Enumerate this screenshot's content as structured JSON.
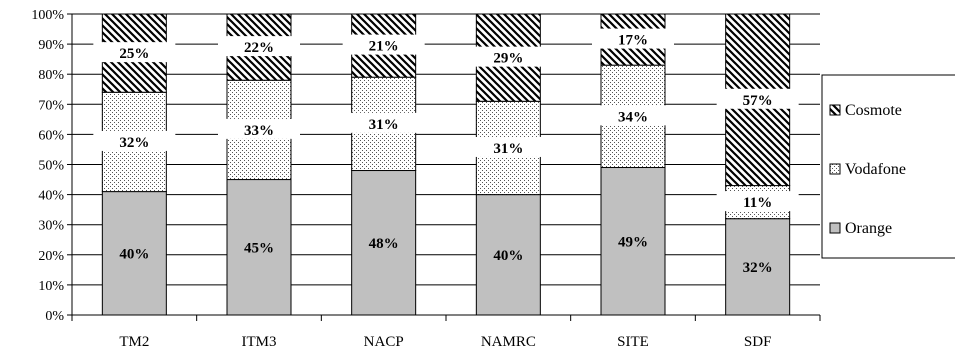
{
  "chart_data": {
    "type": "bar",
    "stacked": true,
    "percent": true,
    "categories": [
      "TM2",
      "ITM3",
      "NACP",
      "NAMRC",
      "SITE",
      "SDF"
    ],
    "series": [
      {
        "name": "Orange",
        "values": [
          40,
          45,
          48,
          40,
          49,
          32
        ],
        "segment_top": [
          41,
          45,
          48,
          40,
          49,
          32
        ],
        "labels": [
          "40%",
          "45%",
          "48%",
          "40%",
          "49%",
          "32%"
        ],
        "fill": "#c0c0c0",
        "pattern": "solid"
      },
      {
        "name": "Vodafone",
        "values": [
          32,
          33,
          31,
          31,
          34,
          11
        ],
        "segment_top": [
          74,
          78,
          79,
          71,
          83,
          43
        ],
        "labels": [
          "32%",
          "33%",
          "31%",
          "31%",
          "34%",
          "11%"
        ],
        "fill": "#ffffff",
        "pattern": "dots"
      },
      {
        "name": "Cosmote",
        "values": [
          25,
          22,
          21,
          29,
          17,
          57
        ],
        "segment_top": [
          100,
          100,
          100,
          100,
          100,
          100
        ],
        "labels": [
          "25%",
          "22%",
          "21%",
          "29%",
          "17%",
          "57%"
        ],
        "fill": "#ffffff",
        "pattern": "diagonal"
      }
    ],
    "y_ticks": [
      "0%",
      "10%",
      "20%",
      "30%",
      "40%",
      "50%",
      "60%",
      "70%",
      "80%",
      "90%",
      "100%"
    ],
    "ylim": [
      0,
      100
    ],
    "grid": true,
    "legend_position": "right",
    "legend_order": [
      "Cosmote",
      "Vodafone",
      "Orange"
    ],
    "title": "",
    "xlabel": "",
    "ylabel": ""
  }
}
